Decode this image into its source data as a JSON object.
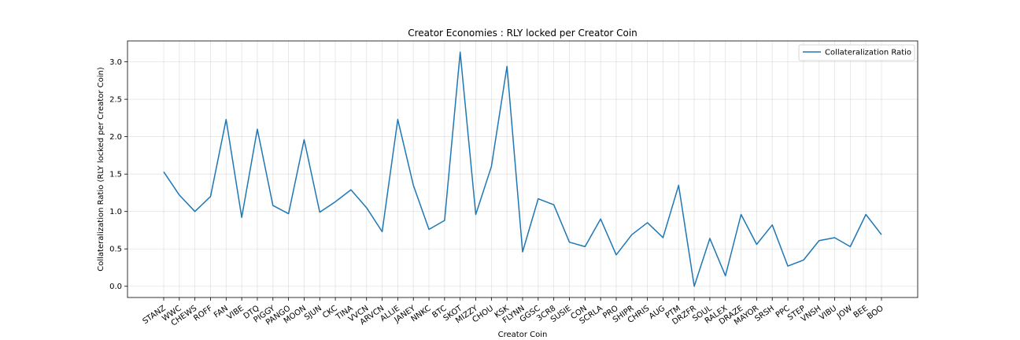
{
  "chart_data": {
    "type": "line",
    "title": "Creator Economies : RLY locked per Creator Coin",
    "xlabel": "Creator Coin",
    "ylabel": "Collateralization Ratio (RLY locked per Creator Coin)",
    "ylim": [
      -0.15,
      3.28
    ],
    "yticks": [
      0.0,
      0.5,
      1.0,
      1.5,
      2.0,
      2.5,
      3.0
    ],
    "ytick_labels": [
      "0.0",
      "0.5",
      "1.0",
      "1.5",
      "2.0",
      "2.5",
      "3.0"
    ],
    "grid": true,
    "legend_position": "upper right",
    "categories": [
      "STANZ",
      "WWC",
      "CHEWS",
      "ROFF",
      "FAN",
      "VIBE",
      "DTQ",
      "PIGGY",
      "PANGO",
      "MOON",
      "SJUN",
      "CKC",
      "TINA",
      "VVCN",
      "ARVCN",
      "ALLIE",
      "JANEY",
      "NNKC",
      "BTC",
      "SKOT",
      "MIZZY",
      "CHOU",
      "KSK",
      "FLYNN",
      "GGSC",
      "3CR8",
      "SUSIE",
      "CON",
      "SCRLA",
      "PRO",
      "SHIPR",
      "CHRIS",
      "AUG",
      "PTM",
      "DRZFR",
      "SOUL",
      "RALEX",
      "DRAZE",
      "MAYOR",
      "SRSH",
      "PPC",
      "STEP",
      "VNSH",
      "VIBU",
      "JOW",
      "BEE",
      "BOO"
    ],
    "series": [
      {
        "name": "Collateralization Ratio",
        "color": "#1f77b4",
        "values": [
          1.53,
          1.22,
          1.0,
          1.2,
          2.23,
          0.92,
          2.1,
          1.08,
          0.97,
          1.96,
          0.99,
          1.13,
          1.29,
          1.05,
          0.73,
          2.23,
          1.35,
          0.76,
          0.88,
          3.13,
          0.96,
          1.6,
          2.94,
          0.46,
          1.17,
          1.09,
          0.59,
          0.53,
          0.9,
          0.42,
          0.69,
          0.85,
          0.65,
          1.35,
          0.0,
          0.64,
          0.14,
          0.96,
          0.56,
          0.82,
          0.27,
          0.35,
          0.61,
          0.65,
          0.53,
          0.96,
          0.69
        ]
      }
    ]
  }
}
